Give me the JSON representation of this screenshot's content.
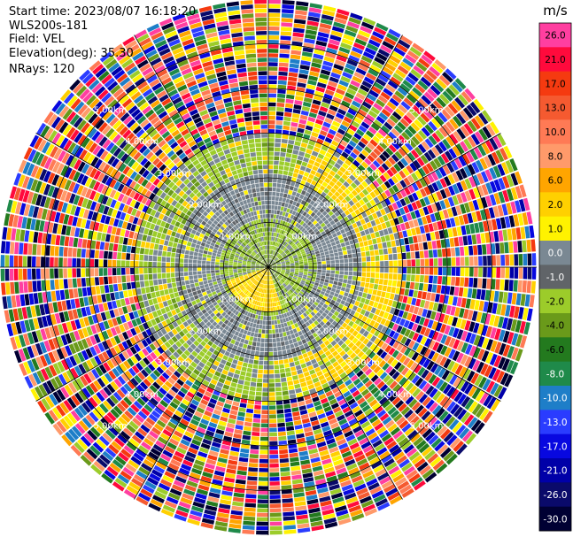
{
  "header": {
    "start_time": "Start time: 2023/08/07 16:18:20",
    "instrument": "WLS200s-181",
    "field": "Field: VEL",
    "elevation": "Elevation(deg): 35.30",
    "nrays": "NRays: 120"
  },
  "chart_data": {
    "type": "heatmap",
    "projection": "polar-ppi",
    "field": "VEL",
    "units": "m/s",
    "n_rays": 120,
    "gate_count": 60,
    "max_range_km": 6.0,
    "range_ring_labels": [
      "1.00km",
      "2.00km",
      "3.00km",
      "4.00km",
      "5.00km"
    ],
    "colorbar": {
      "title": "m/s",
      "tick_labels": [
        "26.0",
        "21.0",
        "17.0",
        "13.0",
        "10.0",
        "8.0",
        "6.0",
        "2.0",
        "1.0",
        "0.0",
        "-1.0",
        "-2.0",
        "-4.0",
        "-6.0",
        "-8.0",
        "-10.0",
        "-13.0",
        "-17.0",
        "-21.0",
        "-26.0",
        "-30.0"
      ],
      "colors": [
        "#ff3fa0",
        "#ff0a3c",
        "#f53a10",
        "#f55a30",
        "#ff7a55",
        "#ff9a6a",
        "#ffa500",
        "#ffd000",
        "#fff200",
        "#7a8893",
        "#606468",
        "#9ccc2a",
        "#6a9a1a",
        "#237a1e",
        "#1f8a4a",
        "#1e7ec8",
        "#2a3cff",
        "#0808e0",
        "#0000a8",
        "#0a0a6a",
        "#000033"
      ]
    },
    "regions": [
      {
        "range_km": [
          0.0,
          0.45
        ],
        "values": [
          "0.0",
          "-2.0",
          "-4.0"
        ]
      },
      {
        "range_km": [
          0.45,
          1.1
        ],
        "values": [
          "0.0",
          "-2.0",
          "-4.0"
        ]
      },
      {
        "range_km": [
          1.1,
          2.1
        ],
        "values": [
          "0.0",
          "-1.0",
          "-2.0"
        ]
      },
      {
        "range_km": [
          2.1,
          3.0
        ],
        "values": [
          "2.0",
          "1.0",
          "-2.0",
          "0.0"
        ]
      },
      {
        "range_km": [
          3.0,
          6.0
        ],
        "values": [
          "noise"
        ]
      }
    ]
  }
}
